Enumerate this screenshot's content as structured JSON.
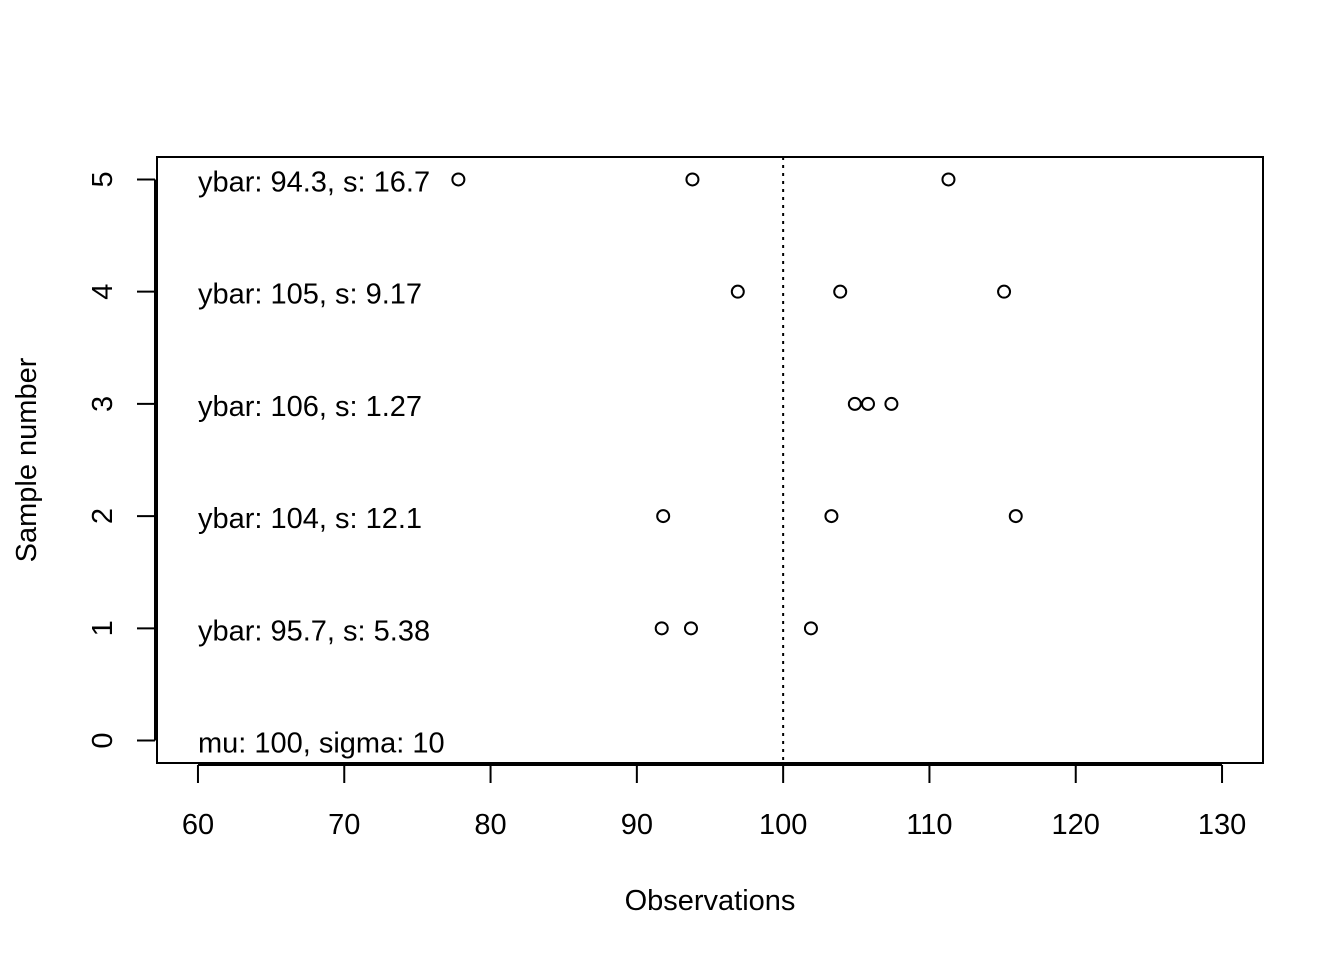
{
  "chart_data": {
    "type": "scatter",
    "title": "",
    "xlabel": "Observations",
    "ylabel": "Sample number",
    "xlim": [
      57.2,
      132.8
    ],
    "ylim": [
      -0.2,
      5.2
    ],
    "x_ticks": [
      60,
      70,
      80,
      90,
      100,
      110,
      120,
      130
    ],
    "y_ticks": [
      0,
      1,
      2,
      3,
      4,
      5
    ],
    "reference_line": {
      "x": 100,
      "style": "dotted"
    },
    "grid": false,
    "legend": "none",
    "marker": "open-circle",
    "samples": [
      {
        "sample": 1,
        "values": [
          91.7,
          93.7,
          101.9
        ],
        "label": "ybar: 95.7, s: 5.38"
      },
      {
        "sample": 2,
        "values": [
          91.8,
          103.3,
          115.9
        ],
        "label": "ybar: 104, s: 12.1"
      },
      {
        "sample": 3,
        "values": [
          104.9,
          105.8,
          107.4
        ],
        "label": "ybar: 106, s: 1.27"
      },
      {
        "sample": 4,
        "values": [
          96.9,
          103.9,
          115.1
        ],
        "label": "ybar: 105, s: 9.17"
      },
      {
        "sample": 5,
        "values": [
          77.8,
          93.8,
          111.3
        ],
        "label": "ybar: 94.3, s: 16.7"
      }
    ],
    "population_label": {
      "sample": 0,
      "label": "mu: 100, sigma: 10"
    }
  }
}
